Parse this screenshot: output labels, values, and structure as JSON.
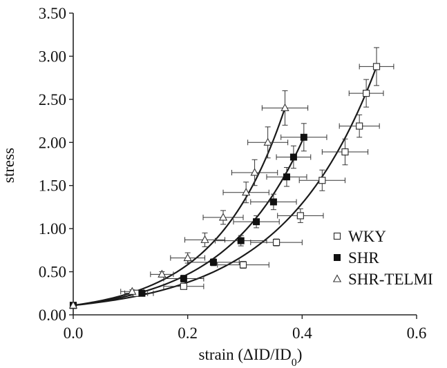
{
  "chart_data": {
    "type": "scatter",
    "title": "",
    "xlabel": "strain (ΔID/ID0)",
    "xlabel_parts": {
      "main": "strain (ΔID/ID",
      "sub": "0",
      "close": ")"
    },
    "ylabel": "stress",
    "xlim": [
      0.0,
      0.6
    ],
    "ylim": [
      0.0,
      3.5
    ],
    "x_ticks": [
      "0.0",
      "0.2",
      "0.4",
      "0.6"
    ],
    "x_tick_values": [
      0.0,
      0.2,
      0.4,
      0.6
    ],
    "y_ticks": [
      "0.00",
      "0.50",
      "1.00",
      "1.50",
      "2.00",
      "2.50",
      "3.00",
      "3.50"
    ],
    "y_tick_values": [
      0.0,
      0.5,
      1.0,
      1.5,
      2.0,
      2.5,
      3.0,
      3.5
    ],
    "grid": false,
    "legend_position": "right",
    "series": [
      {
        "name": "WKY",
        "marker": "square-open",
        "fit_end_x": 0.53,
        "points": [
          {
            "x": 0.0,
            "y": 0.11,
            "xerr": 0.0,
            "yerr": 0.02
          },
          {
            "x": 0.11,
            "y": 0.25,
            "xerr": 0.02,
            "yerr": 0.02
          },
          {
            "x": 0.193,
            "y": 0.33,
            "xerr": 0.035,
            "yerr": 0.03
          },
          {
            "x": 0.297,
            "y": 0.58,
            "xerr": 0.045,
            "yerr": 0.04
          },
          {
            "x": 0.355,
            "y": 0.84,
            "xerr": 0.045,
            "yerr": 0.04
          },
          {
            "x": 0.397,
            "y": 1.15,
            "xerr": 0.04,
            "yerr": 0.08
          },
          {
            "x": 0.435,
            "y": 1.56,
            "xerr": 0.04,
            "yerr": 0.12
          },
          {
            "x": 0.475,
            "y": 1.89,
            "xerr": 0.04,
            "yerr": 0.15
          },
          {
            "x": 0.5,
            "y": 2.19,
            "xerr": 0.035,
            "yerr": 0.13
          },
          {
            "x": 0.512,
            "y": 2.57,
            "xerr": 0.03,
            "yerr": 0.16
          },
          {
            "x": 0.53,
            "y": 2.88,
            "xerr": 0.03,
            "yerr": 0.22
          }
        ]
      },
      {
        "name": "SHR",
        "marker": "square-filled",
        "fit_end_x": 0.403,
        "points": [
          {
            "x": 0.0,
            "y": 0.11,
            "xerr": 0.0,
            "yerr": 0.02
          },
          {
            "x": 0.12,
            "y": 0.25,
            "xerr": 0.02,
            "yerr": 0.02
          },
          {
            "x": 0.193,
            "y": 0.42,
            "xerr": 0.035,
            "yerr": 0.04
          },
          {
            "x": 0.245,
            "y": 0.61,
            "xerr": 0.045,
            "yerr": 0.04
          },
          {
            "x": 0.293,
            "y": 0.86,
            "xerr": 0.045,
            "yerr": 0.06
          },
          {
            "x": 0.32,
            "y": 1.08,
            "xerr": 0.04,
            "yerr": 0.07
          },
          {
            "x": 0.35,
            "y": 1.31,
            "xerr": 0.04,
            "yerr": 0.09
          },
          {
            "x": 0.373,
            "y": 1.6,
            "xerr": 0.035,
            "yerr": 0.11
          },
          {
            "x": 0.385,
            "y": 1.83,
            "xerr": 0.03,
            "yerr": 0.13
          },
          {
            "x": 0.403,
            "y": 2.06,
            "xerr": 0.04,
            "yerr": 0.16
          }
        ]
      },
      {
        "name": "SHR-TELMI",
        "marker": "triangle-open",
        "fit_end_x": 0.37,
        "points": [
          {
            "x": 0.0,
            "y": 0.11,
            "xerr": 0.0,
            "yerr": 0.02
          },
          {
            "x": 0.103,
            "y": 0.27,
            "xerr": 0.02,
            "yerr": 0.02
          },
          {
            "x": 0.155,
            "y": 0.47,
            "xerr": 0.02,
            "yerr": 0.03
          },
          {
            "x": 0.2,
            "y": 0.66,
            "xerr": 0.03,
            "yerr": 0.06
          },
          {
            "x": 0.23,
            "y": 0.87,
            "xerr": 0.035,
            "yerr": 0.08
          },
          {
            "x": 0.262,
            "y": 1.13,
            "xerr": 0.035,
            "yerr": 0.08
          },
          {
            "x": 0.302,
            "y": 1.42,
            "xerr": 0.04,
            "yerr": 0.12
          },
          {
            "x": 0.317,
            "y": 1.65,
            "xerr": 0.04,
            "yerr": 0.15
          },
          {
            "x": 0.34,
            "y": 2.0,
            "xerr": 0.035,
            "yerr": 0.18
          },
          {
            "x": 0.37,
            "y": 2.4,
            "xerr": 0.04,
            "yerr": 0.2
          }
        ]
      }
    ]
  }
}
